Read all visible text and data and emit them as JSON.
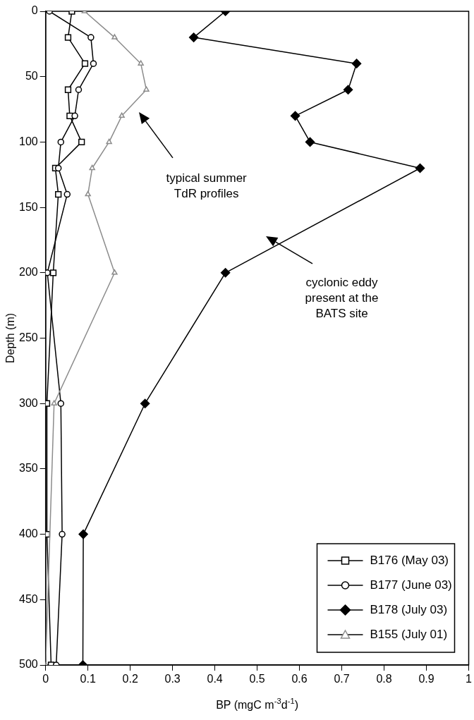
{
  "chart_data": {
    "type": "line",
    "xlabel": "BP (mgC m$^{-3}$d$^{-1}$)",
    "ylabel": "Depth (m)",
    "xlim": [
      0,
      1
    ],
    "xticks": [
      0,
      0.1,
      0.2,
      0.3,
      0.4,
      0.5,
      0.6,
      0.7,
      0.8,
      0.9,
      1
    ],
    "ylim": [
      500,
      0
    ],
    "yticks": [
      0,
      50,
      100,
      150,
      200,
      250,
      300,
      350,
      400,
      450,
      500
    ],
    "grid": false,
    "legend": "bottom right",
    "line_style": "solid",
    "series": [
      {
        "name": "B176 (May 03)",
        "color": "#000000",
        "marker": "square",
        "x": [
          0.062,
          0.053,
          0.093,
          0.053,
          0.057,
          0.085,
          0.023,
          0.03,
          0.018,
          0.003,
          0.003,
          0.013
        ],
        "values": [
          0,
          20,
          40,
          60,
          80,
          100,
          120,
          140,
          200,
          300,
          400,
          500
        ]
      },
      {
        "name": "B177 (June 03)",
        "color": "#000000",
        "marker": "circle",
        "x": [
          0.009,
          0.107,
          0.113,
          0.078,
          0.069,
          0.036,
          0.03,
          0.051,
          0.004,
          0.036,
          0.039,
          0.025
        ],
        "values": [
          0,
          20,
          40,
          60,
          80,
          100,
          120,
          140,
          200,
          300,
          400,
          500
        ]
      },
      {
        "name": "B178 (July 03)",
        "color": "#000000",
        "marker": "diamond",
        "x": [
          0.425,
          0.35,
          0.735,
          0.715,
          0.59,
          0.625,
          0.885,
          0.425,
          0.235,
          0.089,
          0.088
        ],
        "values": [
          0,
          20,
          40,
          60,
          80,
          100,
          120,
          200,
          300,
          400,
          500
        ]
      },
      {
        "name": "B155 (July 01)",
        "color": "#8c8c8c",
        "marker": "triangle",
        "x": [
          0.092,
          0.163,
          0.225,
          0.238,
          0.18,
          0.15,
          0.11,
          0.1,
          0.163,
          0.02,
          0
        ],
        "values": [
          0,
          20,
          40,
          60,
          80,
          100,
          120,
          140,
          200,
          300,
          500
        ]
      }
    ],
    "annotations": [
      "typical summer\nTdR profiles",
      "cyclonic eddy\npresent at the\nBATS site"
    ]
  }
}
